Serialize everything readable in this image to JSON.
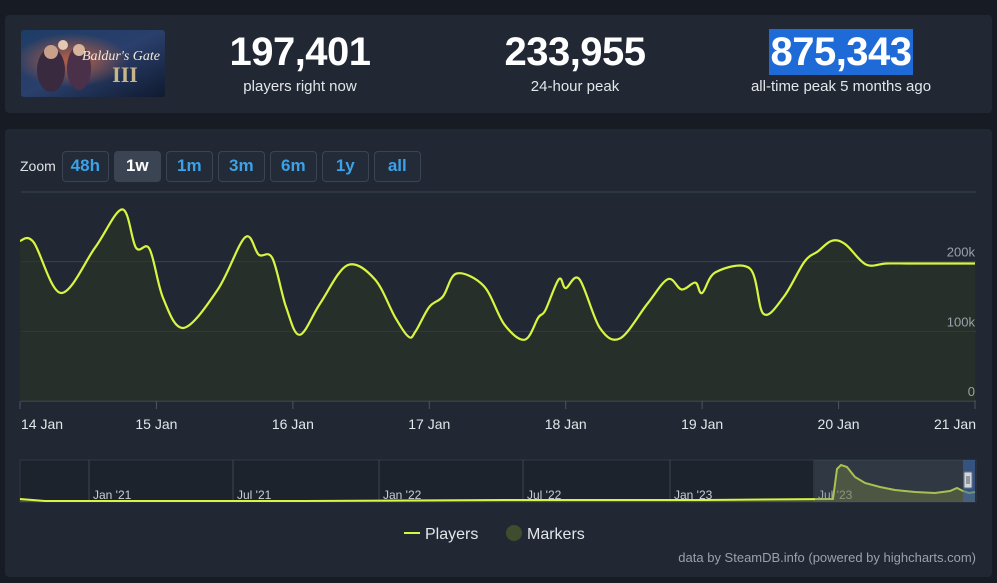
{
  "stats": {
    "current": {
      "value": "197,401",
      "label": "players right now"
    },
    "peak24": {
      "value": "233,955",
      "label": "24-hour peak"
    },
    "alltime": {
      "value": "875,343",
      "label": "all-time peak 5 months ago"
    }
  },
  "game": {
    "logo_text": "Baldur's Gate"
  },
  "zoom": {
    "label": "Zoom",
    "buttons": [
      "48h",
      "1w",
      "1m",
      "3m",
      "6m",
      "1y",
      "all"
    ],
    "active": "1w"
  },
  "legend": {
    "players": "Players",
    "markers": "Markers"
  },
  "credits": "data by SteamDB.info (powered by highcharts.com)",
  "colors": {
    "series": "#d8f542",
    "panel": "#212834",
    "accent": "#3ba2e9"
  },
  "chart_data": {
    "type": "line",
    "series": [
      {
        "name": "Players"
      }
    ],
    "x_tick_labels": [
      "14 Jan",
      "15 Jan",
      "16 Jan",
      "17 Jan",
      "18 Jan",
      "19 Jan",
      "20 Jan",
      "21 Jan"
    ],
    "y_tick_labels": [
      "0",
      "100k",
      "200k"
    ],
    "ylim": [
      0,
      300000
    ],
    "x_start": "2024-01-14",
    "x": [
      0,
      0.1,
      0.3,
      0.55,
      0.75,
      0.85,
      0.95,
      1.05,
      1.2,
      1.45,
      1.65,
      1.75,
      1.85,
      1.95,
      2.05,
      2.2,
      2.4,
      2.6,
      2.75,
      2.85,
      2.9,
      3.0,
      3.1,
      3.2,
      3.4,
      3.55,
      3.7,
      3.8,
      3.85,
      3.95,
      4.0,
      4.1,
      4.25,
      4.4,
      4.6,
      4.75,
      4.85,
      4.95,
      5.0,
      5.1,
      5.35,
      5.45,
      5.6,
      5.75,
      5.85,
      5.95,
      6.05,
      6.2,
      6.35,
      6.5,
      6.65,
      6.8,
      6.95,
      7.0
    ],
    "players": [
      230000,
      228000,
      155000,
      220000,
      275000,
      220000,
      218000,
      147000,
      105000,
      160000,
      235000,
      210000,
      205000,
      135000,
      95000,
      140000,
      195000,
      175000,
      120000,
      92000,
      100000,
      135000,
      150000,
      183000,
      165000,
      110000,
      88000,
      120000,
      130000,
      175000,
      162000,
      175000,
      105000,
      90000,
      140000,
      175000,
      160000,
      170000,
      155000,
      185000,
      190000,
      125000,
      150000,
      200000,
      215000,
      230000,
      225000,
      196000,
      197401,
      197401,
      197401,
      197401,
      197401,
      197401
    ],
    "navigator": {
      "x_tick_labels": [
        "Jan '21",
        "Jul '21",
        "Jan '22",
        "Jul '22",
        "Jan '23",
        "Jul '23"
      ]
    }
  }
}
